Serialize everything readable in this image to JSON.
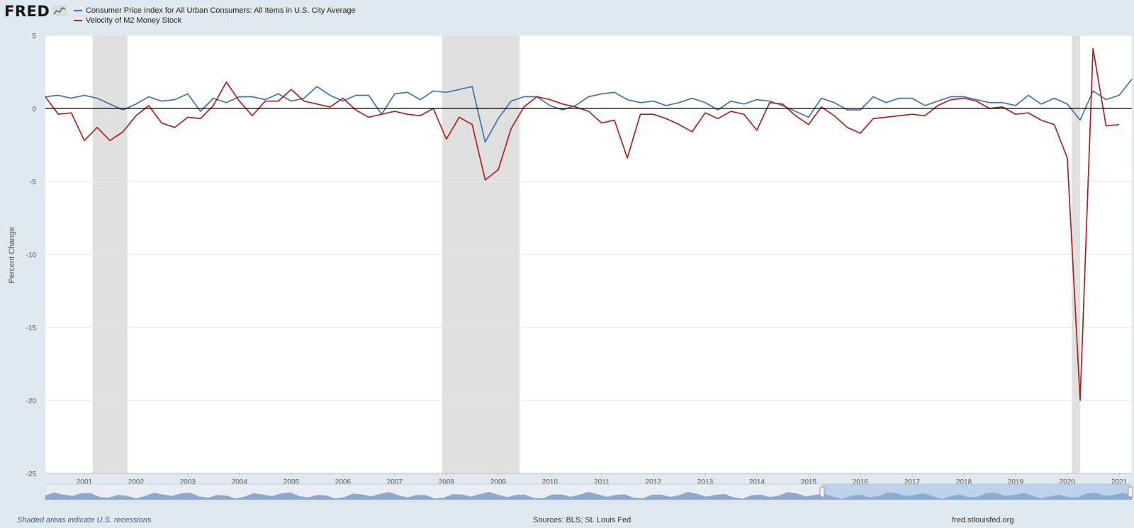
{
  "brand": {
    "logo_text": "FRED",
    "logo_icon": "line-chart-icon"
  },
  "colors": {
    "cpi": "#4572a7",
    "m2v": "#aa2222",
    "recession": "#e0e0e0",
    "navigator": "#6f8fc0"
  },
  "footer": {
    "recession_note": "Shaded areas indicate U.S. recessions.",
    "sources": "Sources: BLS; St. Louis Fed",
    "site": "fred.stlouisfed.org"
  },
  "chart_data": {
    "type": "line",
    "title": "",
    "ylabel": "Percent Change",
    "xlabel": "",
    "xlim": [
      "2000-04-01",
      "2021-04-01"
    ],
    "ylim": [
      -25,
      5
    ],
    "yticks": [
      5,
      0,
      -5,
      -10,
      -15,
      -20,
      -25
    ],
    "xticks": [
      "2001",
      "2002",
      "2003",
      "2004",
      "2005",
      "2006",
      "2007",
      "2008",
      "2009",
      "2010",
      "2011",
      "2012",
      "2013",
      "2014",
      "2015",
      "2016",
      "2017",
      "2018",
      "2019",
      "2020",
      "2021"
    ],
    "grid": true,
    "legend": "top-left",
    "recessions": [
      [
        "2001-03-01",
        "2001-11-01"
      ],
      [
        "2007-12-01",
        "2009-06-01"
      ],
      [
        "2020-02-01",
        "2020-04-01"
      ]
    ],
    "x": [
      "2000-04",
      "2000-07",
      "2000-10",
      "2001-01",
      "2001-04",
      "2001-07",
      "2001-10",
      "2002-01",
      "2002-04",
      "2002-07",
      "2002-10",
      "2003-01",
      "2003-04",
      "2003-07",
      "2003-10",
      "2004-01",
      "2004-04",
      "2004-07",
      "2004-10",
      "2005-01",
      "2005-04",
      "2005-07",
      "2005-10",
      "2006-01",
      "2006-04",
      "2006-07",
      "2006-10",
      "2007-01",
      "2007-04",
      "2007-07",
      "2007-10",
      "2008-01",
      "2008-04",
      "2008-07",
      "2008-10",
      "2009-01",
      "2009-04",
      "2009-07",
      "2009-10",
      "2010-01",
      "2010-04",
      "2010-07",
      "2010-10",
      "2011-01",
      "2011-04",
      "2011-07",
      "2011-10",
      "2012-01",
      "2012-04",
      "2012-07",
      "2012-10",
      "2013-01",
      "2013-04",
      "2013-07",
      "2013-10",
      "2014-01",
      "2014-04",
      "2014-07",
      "2014-10",
      "2015-01",
      "2015-04",
      "2015-07",
      "2015-10",
      "2016-01",
      "2016-04",
      "2016-07",
      "2016-10",
      "2017-01",
      "2017-04",
      "2017-07",
      "2017-10",
      "2018-01",
      "2018-04",
      "2018-07",
      "2018-10",
      "2019-01",
      "2019-04",
      "2019-07",
      "2019-10",
      "2020-01",
      "2020-04",
      "2020-07",
      "2020-10",
      "2021-01",
      "2021-04"
    ],
    "series": [
      {
        "name": "Consumer Price Index for All Urban Consumers: All Items in U.S. City Average",
        "color": "#4572a7",
        "values": [
          0.8,
          0.9,
          0.7,
          0.9,
          0.7,
          0.3,
          -0.1,
          0.3,
          0.8,
          0.5,
          0.6,
          1.0,
          -0.2,
          0.7,
          0.4,
          0.8,
          0.8,
          0.6,
          1.0,
          0.5,
          0.7,
          1.5,
          0.9,
          0.5,
          0.9,
          0.9,
          -0.4,
          1.0,
          1.1,
          0.6,
          1.2,
          1.1,
          1.3,
          1.5,
          -2.3,
          -0.7,
          0.5,
          0.8,
          0.8,
          0.2,
          -0.1,
          0.2,
          0.8,
          1.0,
          1.1,
          0.6,
          0.4,
          0.5,
          0.2,
          0.4,
          0.7,
          0.4,
          -0.1,
          0.5,
          0.3,
          0.6,
          0.5,
          0.2,
          -0.2,
          -0.6,
          0.7,
          0.4,
          -0.1,
          -0.1,
          0.8,
          0.4,
          0.7,
          0.7,
          0.2,
          0.5,
          0.8,
          0.8,
          0.6,
          0.4,
          0.4,
          0.2,
          0.9,
          0.3,
          0.7,
          0.3,
          -0.8,
          1.2,
          0.6,
          0.9,
          2.0
        ]
      },
      {
        "name": "Velocity of M2 Money Stock",
        "color": "#aa2222",
        "values": [
          0.8,
          -0.4,
          -0.3,
          -2.2,
          -1.3,
          -2.2,
          -1.6,
          -0.5,
          0.2,
          -1.0,
          -1.3,
          -0.6,
          -0.7,
          0.2,
          1.8,
          0.5,
          -0.5,
          0.5,
          0.5,
          1.3,
          0.5,
          0.3,
          0.1,
          0.7,
          -0.1,
          -0.6,
          -0.4,
          -0.2,
          -0.4,
          -0.5,
          0.0,
          -2.1,
          -0.6,
          -1.1,
          -4.9,
          -4.2,
          -1.4,
          0.1,
          0.8,
          0.6,
          0.3,
          0.1,
          -0.2,
          -1.0,
          -0.8,
          -3.4,
          -0.4,
          -0.4,
          -0.7,
          -1.1,
          -1.6,
          -0.3,
          -0.7,
          -0.2,
          -0.4,
          -1.5,
          0.4,
          0.3,
          -0.5,
          -1.1,
          0.1,
          -0.5,
          -1.3,
          -1.7,
          -0.7,
          -0.6,
          -0.5,
          -0.4,
          -0.5,
          0.2,
          0.6,
          0.7,
          0.5,
          0.0,
          0.1,
          -0.4,
          -0.3,
          -0.8,
          -1.1,
          -3.4,
          -20.0,
          4.1,
          -1.2,
          -1.1,
          null
        ]
      }
    ]
  }
}
